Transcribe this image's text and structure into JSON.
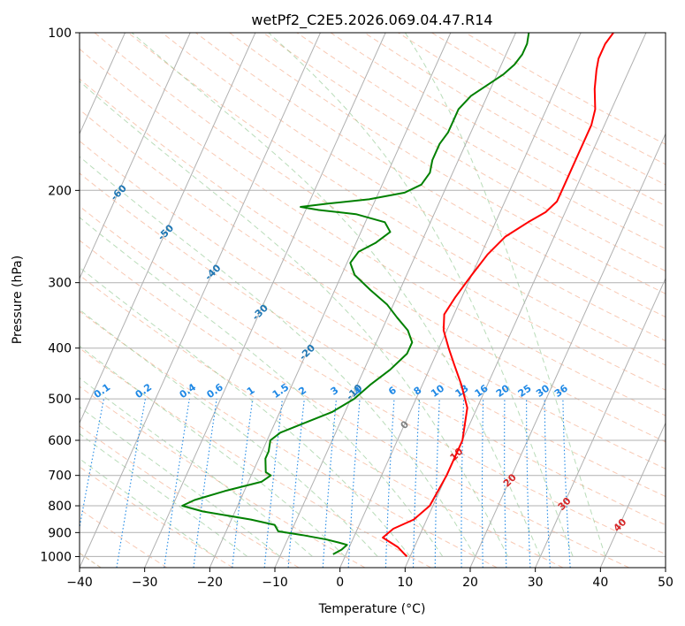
{
  "chart_data": {
    "type": "line",
    "title": "wetPf2_C2E5.2026.069.04.47.R14",
    "xlabel": "Temperature (°C)",
    "ylabel": "Pressure (hPa)",
    "xlim": [
      -40,
      50
    ],
    "ylim": [
      1050,
      100
    ],
    "y_scale": "log",
    "grid": true,
    "x_ticks": [
      -40,
      -30,
      -20,
      -10,
      0,
      10,
      20,
      30,
      40,
      50
    ],
    "y_ticks": [
      100,
      200,
      300,
      400,
      500,
      600,
      700,
      800,
      900,
      1000
    ],
    "skew_ticks": [
      "-100",
      "-90",
      "-80",
      "-70",
      "-60",
      "-50",
      "-40",
      "-30",
      "-20",
      "-10",
      "0",
      "10",
      "20",
      "30",
      "40"
    ],
    "mixing_ratio_labels": [
      "0.1",
      "0.2",
      "0.4",
      "0.6",
      "1",
      "1.5",
      "2",
      "3",
      "4",
      "6",
      "8",
      "10",
      "13",
      "16",
      "20",
      "25",
      "30",
      "36"
    ],
    "mixing_ratio_values": [
      0.1,
      0.2,
      0.4,
      0.6,
      1,
      1.5,
      2,
      3,
      4,
      6,
      8,
      10,
      13,
      16,
      20,
      25,
      30,
      36
    ],
    "series": [
      {
        "color": "#ff0000",
        "points": [
          [
            9.5,
            1000
          ],
          [
            7.5,
            960
          ],
          [
            4.5,
            920
          ],
          [
            5.5,
            885
          ],
          [
            8.0,
            850
          ],
          [
            9.5,
            800
          ],
          [
            10.0,
            700
          ],
          [
            10.0,
            600
          ],
          [
            8.5,
            520
          ],
          [
            6.0,
            470
          ],
          [
            3.5,
            430
          ],
          [
            1.5,
            400
          ],
          [
            -0.5,
            370
          ],
          [
            -1.5,
            345
          ],
          [
            -1.0,
            320
          ],
          [
            0.0,
            290
          ],
          [
            1.0,
            265
          ],
          [
            2.5,
            245
          ],
          [
            5.0,
            230
          ],
          [
            7.0,
            220
          ],
          [
            8.0,
            210
          ],
          [
            8.0,
            200
          ],
          [
            8.0,
            185
          ],
          [
            8.0,
            170
          ],
          [
            8.0,
            150
          ],
          [
            7.5,
            140
          ],
          [
            6.0,
            128
          ],
          [
            5.0,
            118
          ],
          [
            4.5,
            112
          ],
          [
            4.5,
            105
          ],
          [
            5.0,
            100
          ]
        ]
      },
      {
        "color": "#008000",
        "points": [
          [
            -2.0,
            990
          ],
          [
            -1.0,
            970
          ],
          [
            -0.5,
            950
          ],
          [
            -2.0,
            940
          ],
          [
            -4.0,
            928
          ],
          [
            -8.0,
            910
          ],
          [
            -12.0,
            895
          ],
          [
            -13.0,
            870
          ],
          [
            -17.0,
            850
          ],
          [
            -25.0,
            820
          ],
          [
            -28.5,
            800
          ],
          [
            -27.0,
            780
          ],
          [
            -23.0,
            750
          ],
          [
            -18.0,
            720
          ],
          [
            -17.0,
            700
          ],
          [
            -18.0,
            690
          ],
          [
            -18.5,
            670
          ],
          [
            -19.0,
            650
          ],
          [
            -19.0,
            630
          ],
          [
            -19.5,
            600
          ],
          [
            -18.5,
            580
          ],
          [
            -16.0,
            560
          ],
          [
            -12.0,
            530
          ],
          [
            -9.5,
            500
          ],
          [
            -8.0,
            470
          ],
          [
            -6.0,
            440
          ],
          [
            -4.5,
            410
          ],
          [
            -4.5,
            390
          ],
          [
            -6.0,
            370
          ],
          [
            -8.5,
            350
          ],
          [
            -11.0,
            330
          ],
          [
            -14.5,
            310
          ],
          [
            -18.0,
            290
          ],
          [
            -19.5,
            275
          ],
          [
            -19.0,
            262
          ],
          [
            -17.0,
            252
          ],
          [
            -15.5,
            240
          ],
          [
            -17.0,
            230
          ],
          [
            -22.0,
            222
          ],
          [
            -28.0,
            218
          ],
          [
            -31.0,
            215
          ],
          [
            -27.0,
            212
          ],
          [
            -21.0,
            208
          ],
          [
            -16.0,
            202
          ],
          [
            -14.0,
            195
          ],
          [
            -13.5,
            185
          ],
          [
            -14.0,
            175
          ],
          [
            -14.0,
            163
          ],
          [
            -13.5,
            155
          ],
          [
            -13.5,
            148
          ],
          [
            -13.5,
            140
          ],
          [
            -12.5,
            132
          ],
          [
            -10.5,
            125
          ],
          [
            -9.0,
            120
          ],
          [
            -8.0,
            115
          ],
          [
            -7.5,
            110
          ],
          [
            -7.5,
            105
          ],
          [
            -8.0,
            100
          ]
        ]
      }
    ]
  }
}
